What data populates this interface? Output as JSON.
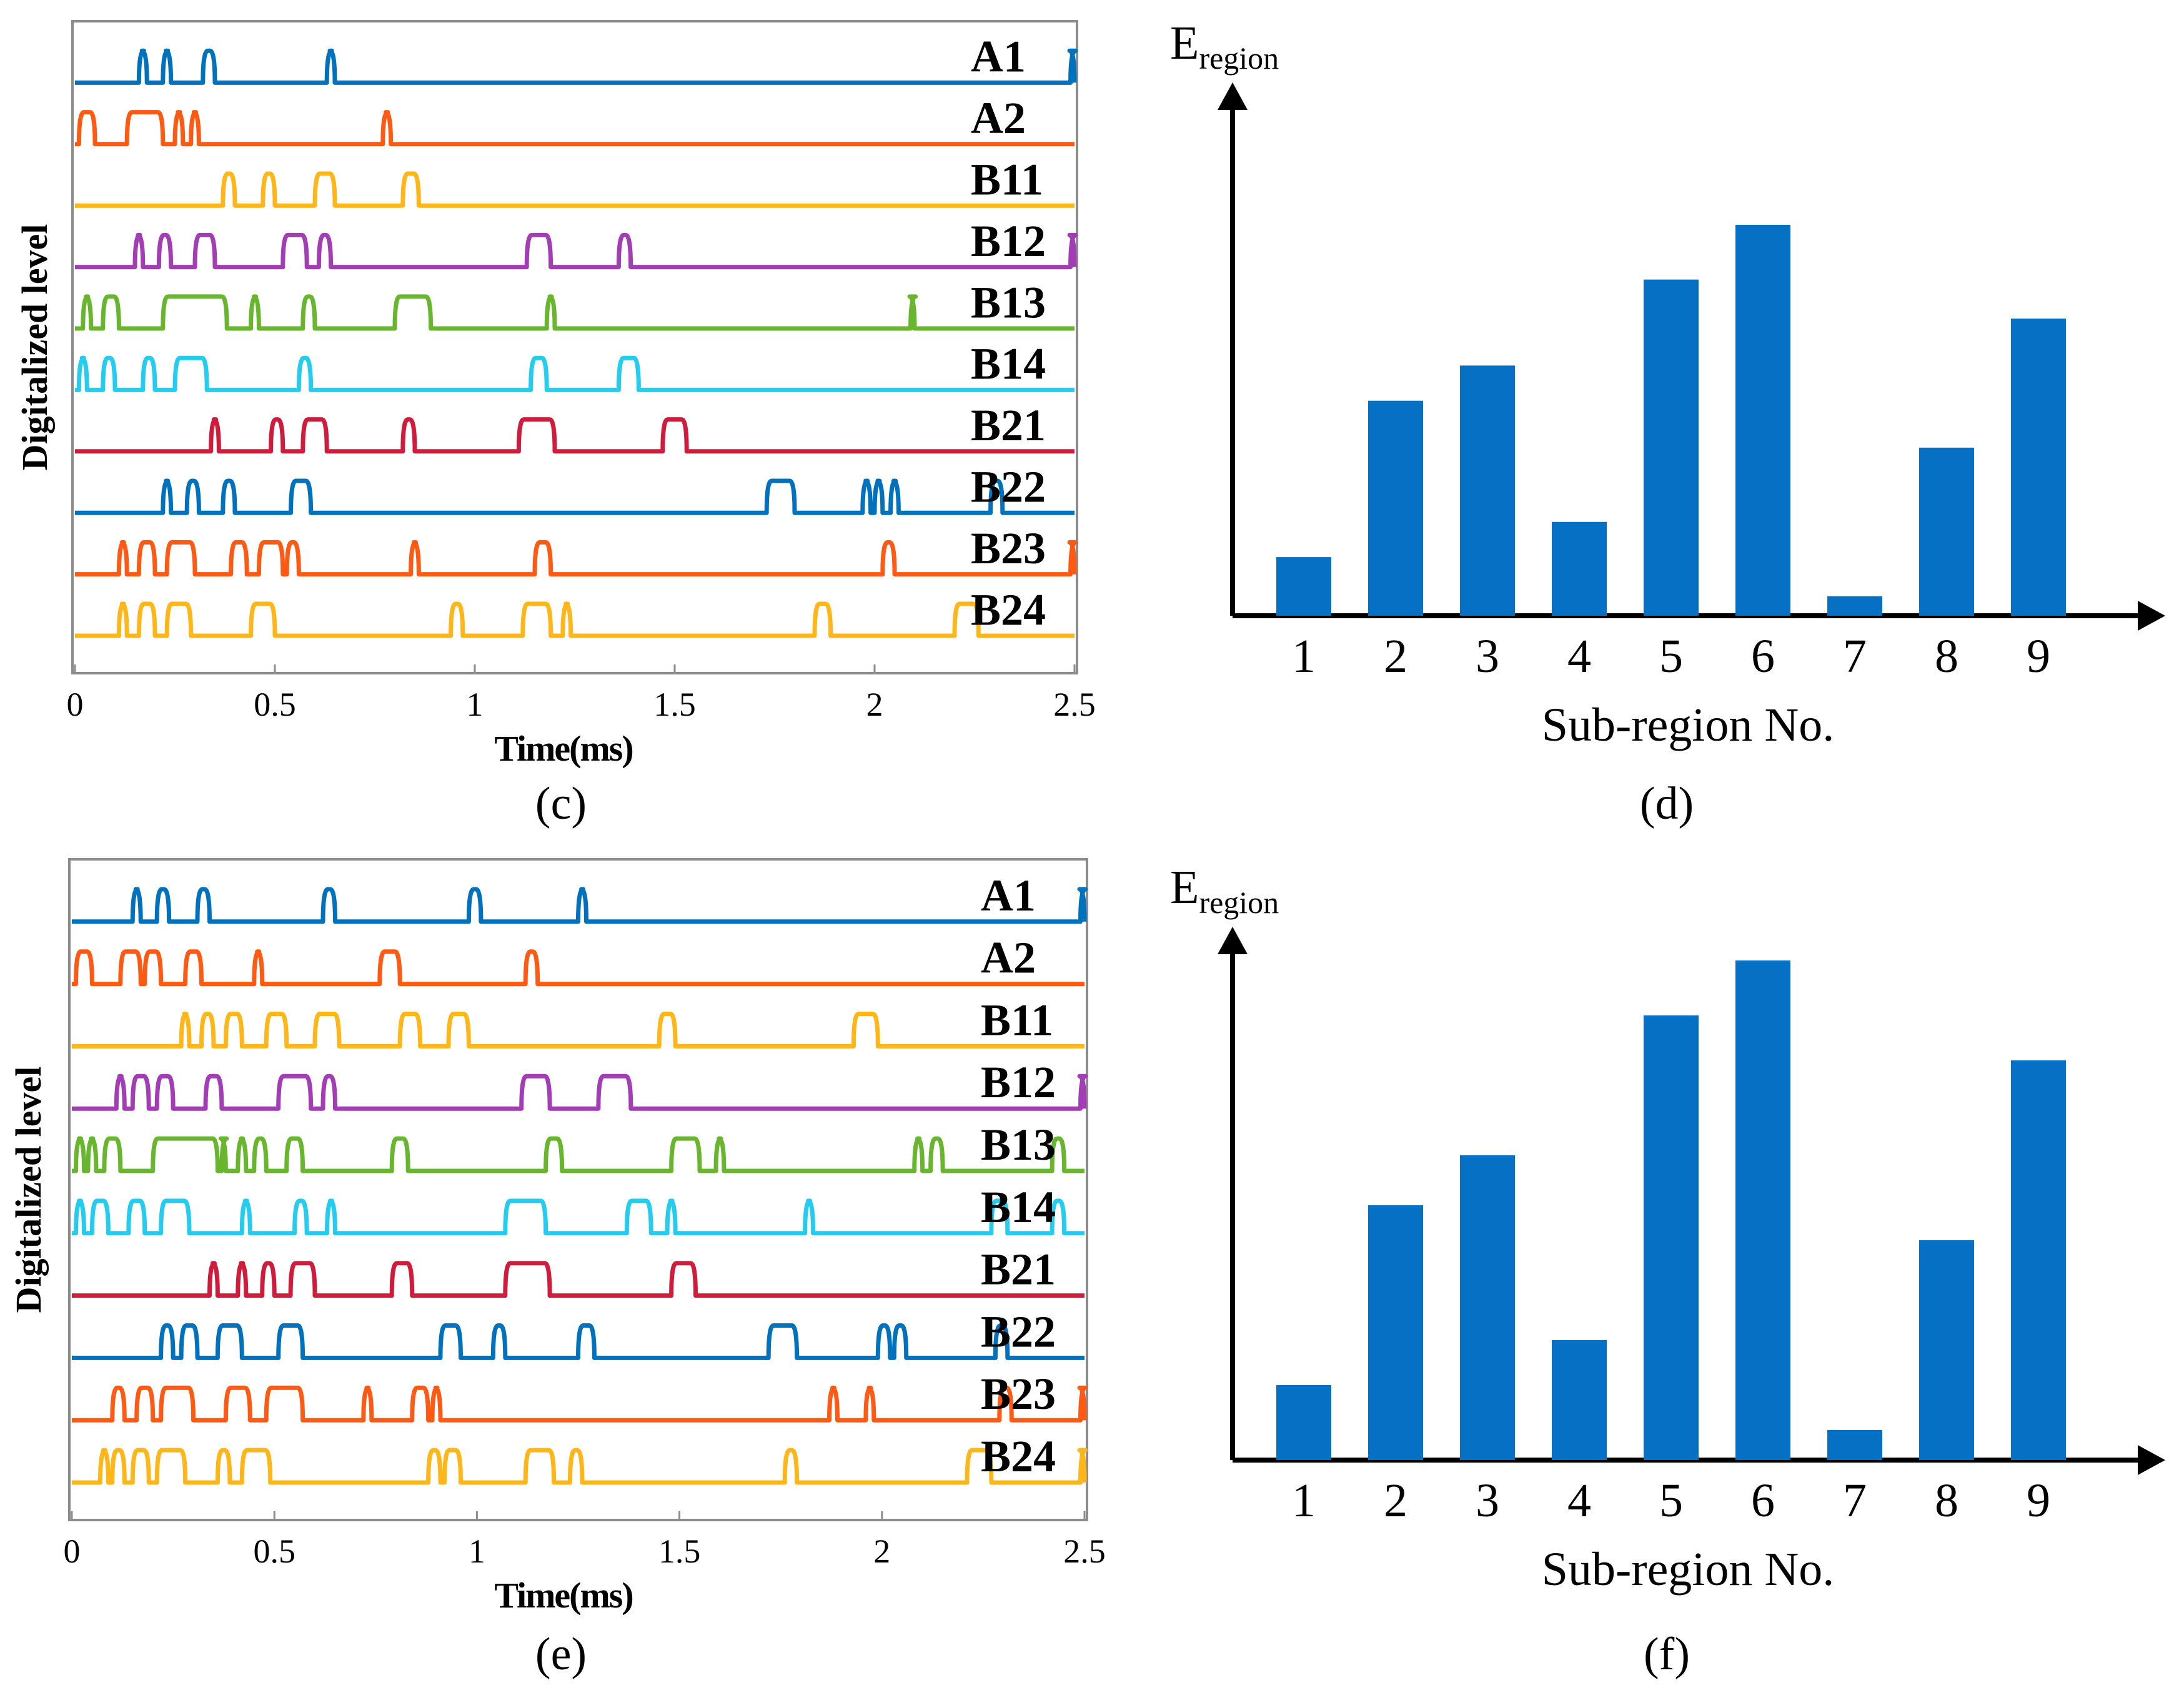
{
  "colors": {
    "blue": "#0072BD",
    "orange": "#FF5A14",
    "yellow": "#FFB619",
    "purple": "#A23DB6",
    "green": "#67B62E",
    "cyan": "#24CCF0",
    "red": "#D01C3C",
    "bar": "#0570C4"
  },
  "chart_data": [
    {
      "type": "line",
      "caption": "(c)",
      "xlabel": "Time(ms)",
      "ylabel": "Digitalized level",
      "xlim": [
        0,
        2.5
      ],
      "xticks": [
        "0",
        "0.5",
        "1",
        "1.5",
        "2",
        "2.5"
      ],
      "channels": [
        {
          "name": "A1",
          "color": "blue",
          "pulses": [
            [
              0.16,
              0.18
            ],
            [
              0.22,
              0.24
            ],
            [
              0.32,
              0.35
            ],
            [
              0.63,
              0.65
            ],
            [
              2.49,
              2.5
            ]
          ]
        },
        {
          "name": "A2",
          "color": "orange",
          "pulses": [
            [
              0.01,
              0.05
            ],
            [
              0.13,
              0.22
            ],
            [
              0.25,
              0.27
            ],
            [
              0.29,
              0.31
            ],
            [
              0.77,
              0.79
            ]
          ]
        },
        {
          "name": "B11",
          "color": "yellow",
          "pulses": [
            [
              0.37,
              0.4
            ],
            [
              0.47,
              0.5
            ],
            [
              0.6,
              0.65
            ],
            [
              0.82,
              0.86
            ]
          ]
        },
        {
          "name": "B12",
          "color": "purple",
          "pulses": [
            [
              0.15,
              0.17
            ],
            [
              0.21,
              0.24
            ],
            [
              0.3,
              0.35
            ],
            [
              0.52,
              0.58
            ],
            [
              0.61,
              0.64
            ],
            [
              1.13,
              1.19
            ],
            [
              1.36,
              1.39
            ],
            [
              2.49,
              2.5
            ]
          ]
        },
        {
          "name": "B13",
          "color": "green",
          "pulses": [
            [
              0.02,
              0.04
            ],
            [
              0.07,
              0.11
            ],
            [
              0.22,
              0.38
            ],
            [
              0.44,
              0.46
            ],
            [
              0.57,
              0.6
            ],
            [
              0.8,
              0.89
            ],
            [
              1.18,
              1.2
            ],
            [
              2.09,
              2.1
            ]
          ]
        },
        {
          "name": "B14",
          "color": "cyan",
          "pulses": [
            [
              0.01,
              0.03
            ],
            [
              0.07,
              0.1
            ],
            [
              0.17,
              0.2
            ],
            [
              0.25,
              0.33
            ],
            [
              0.56,
              0.59
            ],
            [
              1.14,
              1.18
            ],
            [
              1.36,
              1.41
            ]
          ]
        },
        {
          "name": "B21",
          "color": "red",
          "pulses": [
            [
              0.34,
              0.36
            ],
            [
              0.49,
              0.52
            ],
            [
              0.57,
              0.63
            ],
            [
              0.82,
              0.85
            ],
            [
              1.11,
              1.2
            ],
            [
              1.47,
              1.53
            ]
          ]
        },
        {
          "name": "B22",
          "color": "blue",
          "pulses": [
            [
              0.22,
              0.24
            ],
            [
              0.28,
              0.31
            ],
            [
              0.37,
              0.4
            ],
            [
              0.54,
              0.59
            ],
            [
              1.73,
              1.8
            ],
            [
              1.97,
              1.99
            ],
            [
              2.0,
              2.02
            ],
            [
              2.04,
              2.06
            ],
            [
              2.29,
              2.32
            ]
          ]
        },
        {
          "name": "B23",
          "color": "orange",
          "pulses": [
            [
              0.11,
              0.13
            ],
            [
              0.16,
              0.2
            ],
            [
              0.23,
              0.3
            ],
            [
              0.39,
              0.43
            ],
            [
              0.46,
              0.52
            ],
            [
              0.53,
              0.56
            ],
            [
              0.84,
              0.86
            ],
            [
              1.15,
              1.19
            ],
            [
              2.02,
              2.05
            ],
            [
              2.49,
              2.5
            ]
          ]
        },
        {
          "name": "B24",
          "color": "yellow",
          "pulses": [
            [
              0.11,
              0.13
            ],
            [
              0.16,
              0.2
            ],
            [
              0.23,
              0.29
            ],
            [
              0.44,
              0.5
            ],
            [
              0.94,
              0.97
            ],
            [
              1.12,
              1.19
            ],
            [
              1.22,
              1.24
            ],
            [
              1.85,
              1.89
            ],
            [
              2.2,
              2.26
            ]
          ]
        }
      ]
    },
    {
      "type": "bar",
      "caption": "(d)",
      "title_main": "E",
      "title_sub": "region",
      "xlabel": "Sub-region No.",
      "categories": [
        "1",
        "2",
        "3",
        "4",
        "5",
        "6",
        "7",
        "8",
        "9"
      ],
      "values": [
        0.15,
        0.55,
        0.64,
        0.24,
        0.86,
        1.0,
        0.05,
        0.43,
        0.76
      ],
      "ylim": [
        0,
        1.0
      ]
    },
    {
      "type": "line",
      "caption": "(e)",
      "xlabel": "Time(ms)",
      "ylabel": "Digitalized level",
      "xlim": [
        0,
        2.5
      ],
      "xticks": [
        "0",
        "0.5",
        "1",
        "1.5",
        "2",
        "2.5"
      ],
      "channels": [
        {
          "name": "A1",
          "color": "blue",
          "pulses": [
            [
              0.15,
              0.17
            ],
            [
              0.21,
              0.24
            ],
            [
              0.31,
              0.34
            ],
            [
              0.62,
              0.65
            ],
            [
              0.98,
              1.01
            ],
            [
              1.25,
              1.27
            ],
            [
              2.49,
              2.5
            ]
          ]
        },
        {
          "name": "A2",
          "color": "orange",
          "pulses": [
            [
              0.01,
              0.05
            ],
            [
              0.12,
              0.17
            ],
            [
              0.18,
              0.22
            ],
            [
              0.28,
              0.32
            ],
            [
              0.45,
              0.47
            ],
            [
              0.76,
              0.81
            ],
            [
              1.12,
              1.15
            ]
          ]
        },
        {
          "name": "B11",
          "color": "yellow",
          "pulses": [
            [
              0.27,
              0.29
            ],
            [
              0.32,
              0.35
            ],
            [
              0.38,
              0.42
            ],
            [
              0.48,
              0.53
            ],
            [
              0.6,
              0.66
            ],
            [
              0.81,
              0.86
            ],
            [
              0.93,
              0.98
            ],
            [
              1.45,
              1.49
            ],
            [
              1.93,
              1.99
            ]
          ]
        },
        {
          "name": "B12",
          "color": "purple",
          "pulses": [
            [
              0.11,
              0.13
            ],
            [
              0.15,
              0.19
            ],
            [
              0.21,
              0.25
            ],
            [
              0.33,
              0.37
            ],
            [
              0.51,
              0.59
            ],
            [
              0.62,
              0.65
            ],
            [
              1.11,
              1.18
            ],
            [
              1.3,
              1.38
            ],
            [
              2.49,
              2.5
            ]
          ]
        },
        {
          "name": "B13",
          "color": "green",
          "pulses": [
            [
              0.01,
              0.03
            ],
            [
              0.04,
              0.06
            ],
            [
              0.08,
              0.12
            ],
            [
              0.2,
              0.36
            ],
            [
              0.37,
              0.38
            ],
            [
              0.41,
              0.43
            ],
            [
              0.45,
              0.48
            ],
            [
              0.53,
              0.57
            ],
            [
              0.79,
              0.83
            ],
            [
              1.17,
              1.21
            ],
            [
              1.48,
              1.55
            ],
            [
              1.59,
              1.61
            ],
            [
              2.08,
              2.1
            ],
            [
              2.12,
              2.15
            ],
            [
              2.42,
              2.45
            ]
          ]
        },
        {
          "name": "B14",
          "color": "cyan",
          "pulses": [
            [
              0.01,
              0.03
            ],
            [
              0.05,
              0.09
            ],
            [
              0.14,
              0.18
            ],
            [
              0.22,
              0.29
            ],
            [
              0.42,
              0.44
            ],
            [
              0.55,
              0.58
            ],
            [
              0.63,
              0.65
            ],
            [
              1.07,
              1.17
            ],
            [
              1.37,
              1.43
            ],
            [
              1.47,
              1.49
            ],
            [
              1.81,
              1.83
            ],
            [
              2.27,
              2.31
            ],
            [
              2.42,
              2.45
            ]
          ]
        },
        {
          "name": "B21",
          "color": "red",
          "pulses": [
            [
              0.34,
              0.36
            ],
            [
              0.41,
              0.43
            ],
            [
              0.47,
              0.5
            ],
            [
              0.54,
              0.6
            ],
            [
              0.79,
              0.84
            ],
            [
              1.07,
              1.18
            ],
            [
              1.48,
              1.54
            ]
          ]
        },
        {
          "name": "B22",
          "color": "blue",
          "pulses": [
            [
              0.22,
              0.25
            ],
            [
              0.27,
              0.31
            ],
            [
              0.36,
              0.42
            ],
            [
              0.51,
              0.57
            ],
            [
              0.91,
              0.96
            ],
            [
              1.04,
              1.07
            ],
            [
              1.25,
              1.29
            ],
            [
              1.72,
              1.79
            ],
            [
              1.99,
              2.02
            ],
            [
              2.03,
              2.06
            ],
            [
              2.28,
              2.31
            ]
          ]
        },
        {
          "name": "B23",
          "color": "orange",
          "pulses": [
            [
              0.1,
              0.13
            ],
            [
              0.16,
              0.2
            ],
            [
              0.22,
              0.3
            ],
            [
              0.38,
              0.44
            ],
            [
              0.48,
              0.57
            ],
            [
              0.72,
              0.74
            ],
            [
              0.84,
              0.88
            ],
            [
              0.89,
              0.91
            ],
            [
              1.87,
              1.89
            ],
            [
              1.96,
              1.98
            ],
            [
              2.29,
              2.32
            ],
            [
              2.49,
              2.5
            ]
          ]
        },
        {
          "name": "B24",
          "color": "yellow",
          "pulses": [
            [
              0.07,
              0.09
            ],
            [
              0.1,
              0.13
            ],
            [
              0.15,
              0.19
            ],
            [
              0.21,
              0.28
            ],
            [
              0.36,
              0.39
            ],
            [
              0.42,
              0.49
            ],
            [
              0.88,
              0.91
            ],
            [
              0.92,
              0.96
            ],
            [
              1.12,
              1.19
            ],
            [
              1.23,
              1.26
            ],
            [
              1.76,
              1.79
            ],
            [
              2.21,
              2.27
            ],
            [
              2.49,
              2.5
            ]
          ]
        }
      ]
    },
    {
      "type": "bar",
      "caption": "(f)",
      "title_main": "E",
      "title_sub": "region",
      "xlabel": "Sub-region No.",
      "categories": [
        "1",
        "2",
        "3",
        "4",
        "5",
        "6",
        "7",
        "8",
        "9"
      ],
      "values": [
        0.15,
        0.51,
        0.61,
        0.24,
        0.89,
        1.0,
        0.06,
        0.44,
        0.8
      ],
      "ylim": [
        0,
        1.0
      ]
    }
  ]
}
